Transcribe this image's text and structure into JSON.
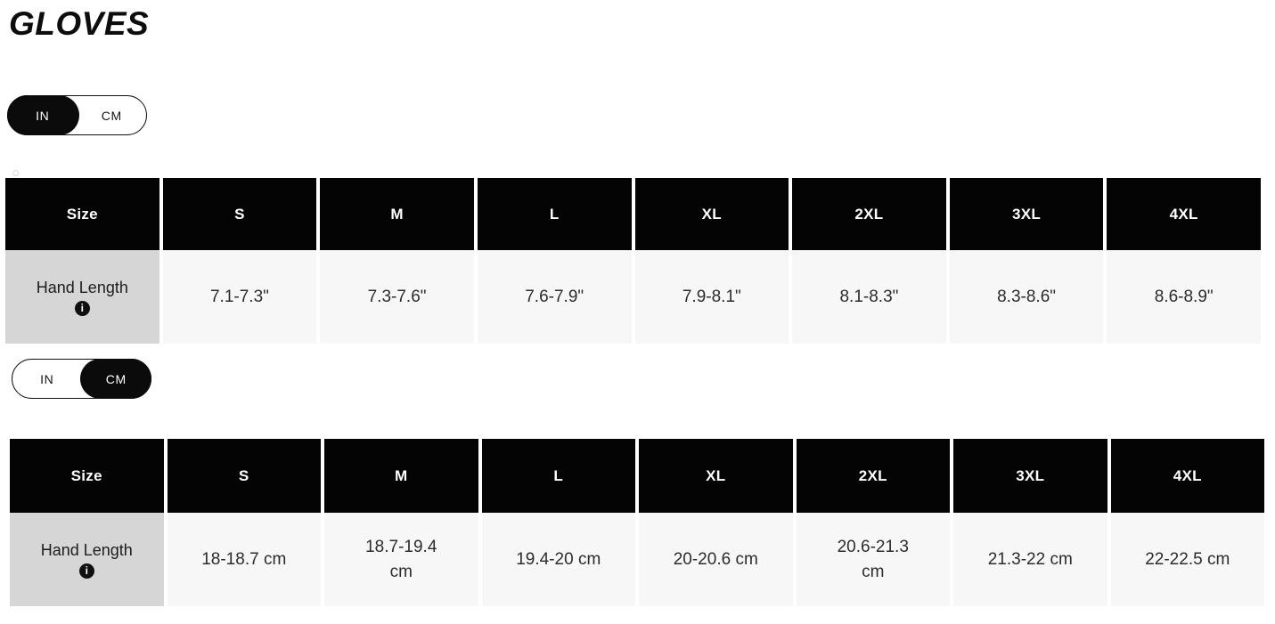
{
  "page": {
    "title": "GLOVES"
  },
  "toggles": {
    "top": {
      "in_label": "IN",
      "cm_label": "CM",
      "selected": "IN"
    },
    "bottom": {
      "in_label": "IN",
      "cm_label": "CM",
      "selected": "CM"
    }
  },
  "info_icon_glyph": "i",
  "tables": {
    "inches": {
      "headers": [
        "Size",
        "S",
        "M",
        "L",
        "XL",
        "2XL",
        "3XL",
        "4XL"
      ],
      "row_label": "Hand Length",
      "values": [
        "7.1-7.3\"",
        "7.3-7.6\"",
        "7.6-7.9\"",
        "7.9-8.1\"",
        "8.1-8.3\"",
        "8.3-8.6\"",
        "8.6-8.9\""
      ]
    },
    "cm": {
      "headers": [
        "Size",
        "S",
        "M",
        "L",
        "XL",
        "2XL",
        "3XL",
        "4XL"
      ],
      "row_label": "Hand Length",
      "values": [
        "18-18.7 cm",
        "18.7-19.4 cm",
        "19.4-20 cm",
        "20-20.6 cm",
        "20.6-21.3 cm",
        "21.3-22 cm",
        "22-22.5 cm"
      ]
    }
  },
  "colors": {
    "header_bg": "#040404",
    "label_cell_bg": "#d6d6d6",
    "value_cell_bg": "#f7f7f7",
    "toggle_active_bg": "#0b0b0b",
    "text": "#2c2c2c"
  }
}
